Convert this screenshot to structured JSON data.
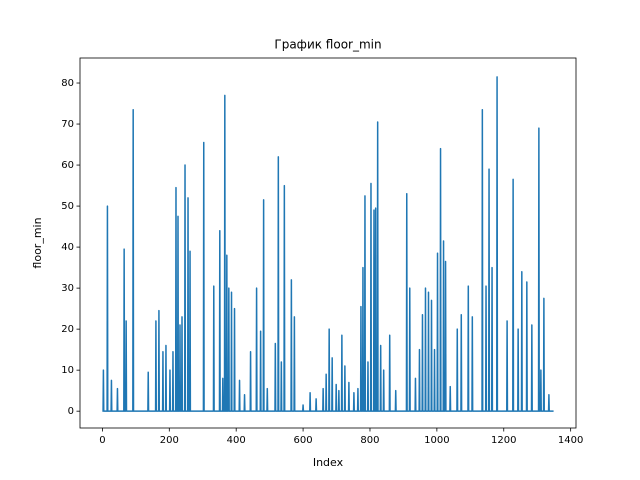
{
  "chart_data": {
    "type": "line",
    "title": "График floor_min",
    "x_label": "Index",
    "y_label": "floor_min",
    "xlim": [
      -67,
      1416
    ],
    "ylim": [
      -4.1,
      86.1
    ],
    "xticks": [
      0,
      200,
      400,
      600,
      800,
      1000,
      1200,
      1400
    ],
    "yticks": [
      0,
      10,
      20,
      30,
      40,
      50,
      60,
      70,
      80
    ],
    "grid": false,
    "series": [
      {
        "color": "#1f77b4",
        "x": [
          0,
          2,
          3,
          4,
          14,
          15,
          16,
          26,
          27,
          28,
          44,
          45,
          46,
          64,
          65,
          66,
          70,
          71,
          72,
          91,
          92,
          93,
          136,
          137,
          138,
          159,
          160,
          161,
          168,
          169,
          170,
          180,
          181,
          182,
          189,
          190,
          191,
          201,
          202,
          203,
          210,
          211,
          212,
          219,
          220,
          221,
          225,
          226,
          227,
          231,
          232,
          233,
          237,
          238,
          239,
          246,
          247,
          248,
          255,
          256,
          257,
          261,
          262,
          263,
          302,
          303,
          304,
          332,
          333,
          334,
          350,
          351,
          352,
          359,
          360,
          361,
          365,
          366,
          367,
          371,
          372,
          373,
          377,
          378,
          379,
          385,
          386,
          387,
          394,
          395,
          396,
          409,
          410,
          411,
          424,
          425,
          426,
          442,
          443,
          444,
          460,
          461,
          462,
          472,
          473,
          474,
          481,
          482,
          483,
          492,
          493,
          494,
          516,
          517,
          518,
          525,
          526,
          527,
          534,
          535,
          536,
          543,
          544,
          545,
          564,
          565,
          566,
          573,
          574,
          575,
          599,
          600,
          601,
          620,
          621,
          622,
          638,
          639,
          640,
          659,
          660,
          661,
          668,
          669,
          670,
          677,
          678,
          679,
          686,
          687,
          688,
          698,
          699,
          700,
          706,
          707,
          708,
          715,
          716,
          717,
          724,
          725,
          726,
          736,
          737,
          738,
          751,
          752,
          753,
          763,
          764,
          765,
          772,
          773,
          774,
          778,
          779,
          780,
          784,
          785,
          786,
          793,
          794,
          795,
          802,
          803,
          804,
          811,
          812,
          813,
          816,
          817,
          818,
          822,
          823,
          824,
          831,
          832,
          833,
          840,
          841,
          842,
          858,
          859,
          860,
          876,
          877,
          878,
          909,
          910,
          911,
          918,
          919,
          920,
          935,
          936,
          937,
          947,
          948,
          949,
          956,
          957,
          958,
          965,
          966,
          967,
          974,
          975,
          976,
          983,
          984,
          985,
          992,
          993,
          994,
          1001,
          1002,
          1003,
          1010,
          1011,
          1012,
          1019,
          1020,
          1021,
          1025,
          1026,
          1027,
          1039,
          1040,
          1041,
          1060,
          1061,
          1062,
          1072,
          1073,
          1074,
          1093,
          1094,
          1095,
          1105,
          1106,
          1107,
          1135,
          1136,
          1137,
          1146,
          1147,
          1148,
          1155,
          1156,
          1157,
          1164,
          1165,
          1166,
          1179,
          1180,
          1181,
          1209,
          1210,
          1211,
          1227,
          1228,
          1229,
          1242,
          1243,
          1244,
          1253,
          1254,
          1255,
          1268,
          1269,
          1270,
          1283,
          1284,
          1285,
          1304,
          1305,
          1306,
          1310,
          1311,
          1312,
          1319,
          1320,
          1321,
          1334,
          1335,
          1336,
          1349
        ],
        "values": [
          0,
          0,
          10,
          0,
          0,
          50,
          0,
          0,
          7.5,
          0,
          0,
          5.5,
          0,
          0,
          39.5,
          0,
          0,
          22,
          0,
          0,
          73.5,
          0,
          0,
          9.5,
          0,
          0,
          22,
          0,
          0,
          24.5,
          0,
          0,
          14.5,
          0,
          0,
          16,
          0,
          0,
          10,
          0,
          0,
          14.5,
          0,
          0,
          54.5,
          0,
          0,
          47.5,
          0,
          0,
          21,
          0,
          0,
          23,
          0,
          0,
          60,
          0,
          0,
          52,
          0,
          0,
          39,
          0,
          0,
          65.5,
          0,
          0,
          30.5,
          0,
          0,
          44,
          0,
          0,
          8,
          0,
          0,
          77,
          0,
          0,
          38,
          0,
          0,
          30,
          0,
          0,
          29,
          0,
          0,
          25,
          0,
          0,
          7.5,
          0,
          0,
          4,
          0,
          0,
          14.5,
          0,
          0,
          30,
          0,
          0,
          19.5,
          0,
          0,
          51.5,
          0,
          0,
          5.5,
          0,
          0,
          16.5,
          0,
          0,
          62,
          0,
          0,
          12,
          0,
          0,
          55,
          0,
          0,
          32,
          0,
          0,
          23,
          0,
          0,
          1.5,
          0,
          0,
          4.5,
          0,
          0,
          3,
          0,
          0,
          5.5,
          0,
          0,
          9,
          0,
          0,
          20,
          0,
          0,
          13,
          0,
          0,
          6.5,
          0,
          0,
          5,
          0,
          0,
          18.5,
          0,
          0,
          11,
          0,
          0,
          7,
          0,
          0,
          4.5,
          0,
          0,
          5.5,
          0,
          0,
          25.5,
          0,
          0,
          35,
          0,
          0,
          52.5,
          0,
          0,
          12,
          0,
          0,
          55.5,
          0,
          0,
          49,
          0,
          0,
          49.5,
          0,
          0,
          70.5,
          0,
          0,
          16,
          0,
          0,
          10,
          0,
          0,
          18.5,
          0,
          0,
          5,
          0,
          0,
          53,
          0,
          0,
          30,
          0,
          0,
          8,
          0,
          0,
          15,
          0,
          0,
          23.5,
          0,
          0,
          30,
          0,
          0,
          29,
          0,
          0,
          27,
          0,
          0,
          15,
          0,
          0,
          38.5,
          0,
          0,
          64,
          0,
          0,
          41.5,
          0,
          0,
          36.5,
          0,
          0,
          6,
          0,
          0,
          20,
          0,
          0,
          23.5,
          0,
          0,
          30.5,
          0,
          0,
          23,
          0,
          0,
          73.5,
          0,
          0,
          30.5,
          0,
          0,
          59,
          0,
          0,
          35,
          0,
          0,
          81.5,
          0,
          0,
          22,
          0,
          0,
          56.5,
          0,
          0,
          20,
          0,
          0,
          34,
          0,
          0,
          31.5,
          0,
          0,
          21,
          0,
          0,
          69,
          0,
          0,
          10,
          0,
          0,
          27.5,
          0,
          0,
          4,
          0,
          0
        ]
      }
    ]
  }
}
